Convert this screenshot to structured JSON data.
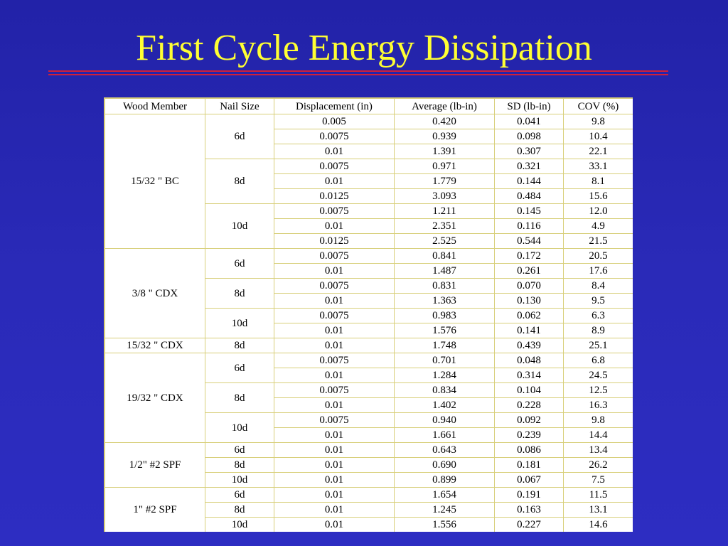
{
  "slide": {
    "title": "First Cycle Energy Dissipation",
    "colors": {
      "background": "#2a2ab8",
      "title": "#ffff33",
      "rule": "#d0203a",
      "table_border": "#d8cf7a"
    }
  },
  "table": {
    "headers": [
      "Wood Member",
      "Nail Size",
      "Displacement (in)",
      "Average (lb-in)",
      "SD (lb-in)",
      "COV (%)"
    ],
    "groups": [
      {
        "member": "15/32 \" BC",
        "nails": [
          {
            "size": "6d",
            "rows": [
              [
                "0.005",
                "0.420",
                "0.041",
                "9.8"
              ],
              [
                "0.0075",
                "0.939",
                "0.098",
                "10.4"
              ],
              [
                "0.01",
                "1.391",
                "0.307",
                "22.1"
              ]
            ]
          },
          {
            "size": "8d",
            "rows": [
              [
                "0.0075",
                "0.971",
                "0.321",
                "33.1"
              ],
              [
                "0.01",
                "1.779",
                "0.144",
                "8.1"
              ],
              [
                "0.0125",
                "3.093",
                "0.484",
                "15.6"
              ]
            ]
          },
          {
            "size": "10d",
            "rows": [
              [
                "0.0075",
                "1.211",
                "0.145",
                "12.0"
              ],
              [
                "0.01",
                "2.351",
                "0.116",
                "4.9"
              ],
              [
                "0.0125",
                "2.525",
                "0.544",
                "21.5"
              ]
            ]
          }
        ]
      },
      {
        "member": "3/8 \" CDX",
        "nails": [
          {
            "size": "6d",
            "rows": [
              [
                "0.0075",
                "0.841",
                "0.172",
                "20.5"
              ],
              [
                "0.01",
                "1.487",
                "0.261",
                "17.6"
              ]
            ]
          },
          {
            "size": "8d",
            "rows": [
              [
                "0.0075",
                "0.831",
                "0.070",
                "8.4"
              ],
              [
                "0.01",
                "1.363",
                "0.130",
                "9.5"
              ]
            ]
          },
          {
            "size": "10d",
            "rows": [
              [
                "0.0075",
                "0.983",
                "0.062",
                "6.3"
              ],
              [
                "0.01",
                "1.576",
                "0.141",
                "8.9"
              ]
            ]
          }
        ]
      },
      {
        "member": "15/32 \" CDX",
        "nails": [
          {
            "size": "8d",
            "rows": [
              [
                "0.01",
                "1.748",
                "0.439",
                "25.1"
              ]
            ]
          }
        ]
      },
      {
        "member": "19/32 \" CDX",
        "nails": [
          {
            "size": "6d",
            "rows": [
              [
                "0.0075",
                "0.701",
                "0.048",
                "6.8"
              ],
              [
                "0.01",
                "1.284",
                "0.314",
                "24.5"
              ]
            ]
          },
          {
            "size": "8d",
            "rows": [
              [
                "0.0075",
                "0.834",
                "0.104",
                "12.5"
              ],
              [
                "0.01",
                "1.402",
                "0.228",
                "16.3"
              ]
            ]
          },
          {
            "size": "10d",
            "rows": [
              [
                "0.0075",
                "0.940",
                "0.092",
                "9.8"
              ],
              [
                "0.01",
                "1.661",
                "0.239",
                "14.4"
              ]
            ]
          }
        ]
      },
      {
        "member": "1/2\" #2 SPF",
        "nails": [
          {
            "size": "6d",
            "rows": [
              [
                "0.01",
                "0.643",
                "0.086",
                "13.4"
              ]
            ]
          },
          {
            "size": "8d",
            "rows": [
              [
                "0.01",
                "0.690",
                "0.181",
                "26.2"
              ]
            ]
          },
          {
            "size": "10d",
            "rows": [
              [
                "0.01",
                "0.899",
                "0.067",
                "7.5"
              ]
            ]
          }
        ]
      },
      {
        "member": "1\" #2 SPF",
        "nails": [
          {
            "size": "6d",
            "rows": [
              [
                "0.01",
                "1.654",
                "0.191",
                "11.5"
              ]
            ]
          },
          {
            "size": "8d",
            "rows": [
              [
                "0.01",
                "1.245",
                "0.163",
                "13.1"
              ]
            ]
          },
          {
            "size": "10d",
            "rows": [
              [
                "0.01",
                "1.556",
                "0.227",
                "14.6"
              ]
            ]
          }
        ]
      }
    ]
  }
}
